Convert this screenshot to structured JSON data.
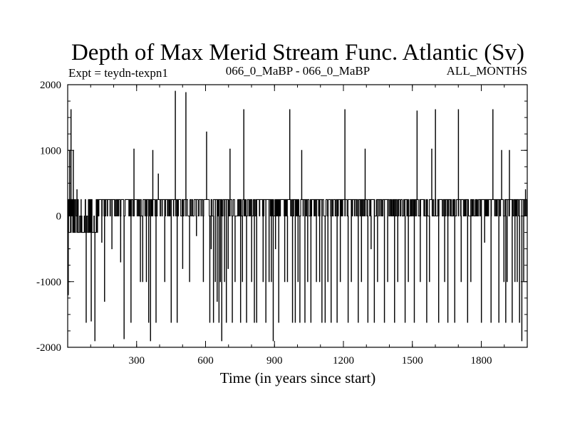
{
  "chart_data": {
    "type": "line",
    "title": "Depth of Max Merid Stream Func. Atlantic (Sv)",
    "subtitle_left": "Expt = teydn-texpn1",
    "subtitle_center": "066_0_MaBP - 066_0_MaBP",
    "subtitle_right": "ALL_MONTHS",
    "xlabel": "Time (in years since start)",
    "ylabel": "",
    "xlim": [
      0,
      2000
    ],
    "ylim": [
      -2000,
      2000
    ],
    "xticks": [
      300,
      600,
      900,
      1200,
      1500,
      1800
    ],
    "yticks": [
      -2000,
      -1000,
      0,
      1000,
      2000
    ],
    "x_minor_step": 100,
    "y_minor_step": 250,
    "grid": false,
    "baseline_values": [
      -250,
      0,
      250
    ],
    "series": [
      {
        "color": "#000000",
        "spikes": [
          [
            2,
            -1200
          ],
          [
            8,
            1000
          ],
          [
            14,
            1620
          ],
          [
            24,
            1000
          ],
          [
            32,
            -250
          ],
          [
            40,
            400
          ],
          [
            48,
            -250
          ],
          [
            58,
            250
          ],
          [
            72,
            -250
          ],
          [
            80,
            -1620
          ],
          [
            90,
            250
          ],
          [
            102,
            -1600
          ],
          [
            118,
            -1900
          ],
          [
            128,
            250
          ],
          [
            148,
            -400
          ],
          [
            160,
            -1300
          ],
          [
            176,
            250
          ],
          [
            192,
            -500
          ],
          [
            206,
            250
          ],
          [
            230,
            -700
          ],
          [
            245,
            -1870
          ],
          [
            262,
            250
          ],
          [
            275,
            -1620
          ],
          [
            288,
            1020
          ],
          [
            302,
            250
          ],
          [
            316,
            -1000
          ],
          [
            326,
            -1000
          ],
          [
            334,
            250
          ],
          [
            342,
            -1000
          ],
          [
            352,
            -1620
          ],
          [
            360,
            -1900
          ],
          [
            370,
            1000
          ],
          [
            384,
            -1620
          ],
          [
            394,
            640
          ],
          [
            410,
            250
          ],
          [
            422,
            -1000
          ],
          [
            438,
            250
          ],
          [
            450,
            -1620
          ],
          [
            468,
            1900
          ],
          [
            476,
            -1620
          ],
          [
            490,
            250
          ],
          [
            500,
            -800
          ],
          [
            514,
            1880
          ],
          [
            530,
            -1000
          ],
          [
            544,
            250
          ],
          [
            560,
            -300
          ],
          [
            575,
            250
          ],
          [
            590,
            -1000
          ],
          [
            604,
            1280
          ],
          [
            618,
            -1620
          ],
          [
            624,
            -500
          ],
          [
            634,
            -1620
          ],
          [
            642,
            -1000
          ],
          [
            650,
            -1300
          ],
          [
            658,
            -1620
          ],
          [
            664,
            -1000
          ],
          [
            670,
            -1900
          ],
          [
            682,
            -1000
          ],
          [
            690,
            -1620
          ],
          [
            698,
            -800
          ],
          [
            706,
            1020
          ],
          [
            716,
            -1620
          ],
          [
            728,
            -1000
          ],
          [
            740,
            250
          ],
          [
            752,
            -1620
          ],
          [
            760,
            -1000
          ],
          [
            766,
            1620
          ],
          [
            778,
            -1620
          ],
          [
            792,
            250
          ],
          [
            800,
            -1000
          ],
          [
            812,
            -1620
          ],
          [
            822,
            -1620
          ],
          [
            832,
            250
          ],
          [
            850,
            -1000
          ],
          [
            862,
            -1620
          ],
          [
            876,
            -1000
          ],
          [
            886,
            -1000
          ],
          [
            894,
            -1900
          ],
          [
            904,
            -500
          ],
          [
            918,
            -1620
          ],
          [
            932,
            250
          ],
          [
            944,
            -1000
          ],
          [
            956,
            -1000
          ],
          [
            966,
            1620
          ],
          [
            978,
            -1620
          ],
          [
            990,
            -1620
          ],
          [
            1002,
            -1000
          ],
          [
            1010,
            -1620
          ],
          [
            1018,
            1000
          ],
          [
            1032,
            -1620
          ],
          [
            1044,
            -1000
          ],
          [
            1058,
            -1620
          ],
          [
            1072,
            250
          ],
          [
            1082,
            -1000
          ],
          [
            1096,
            -1000
          ],
          [
            1106,
            -1620
          ],
          [
            1120,
            -1620
          ],
          [
            1132,
            -1000
          ],
          [
            1146,
            -1620
          ],
          [
            1160,
            250
          ],
          [
            1172,
            -1620
          ],
          [
            1186,
            -1000
          ],
          [
            1196,
            250
          ],
          [
            1206,
            1620
          ],
          [
            1220,
            -1620
          ],
          [
            1234,
            -1000
          ],
          [
            1248,
            250
          ],
          [
            1264,
            -1620
          ],
          [
            1278,
            -1000
          ],
          [
            1294,
            1020
          ],
          [
            1306,
            -1620
          ],
          [
            1320,
            -500
          ],
          [
            1334,
            -1620
          ],
          [
            1348,
            -1000
          ],
          [
            1362,
            250
          ],
          [
            1378,
            -1620
          ],
          [
            1392,
            -1000
          ],
          [
            1406,
            250
          ],
          [
            1422,
            -1620
          ],
          [
            1436,
            -1000
          ],
          [
            1452,
            250
          ],
          [
            1468,
            -1620
          ],
          [
            1482,
            -1000
          ],
          [
            1496,
            250
          ],
          [
            1508,
            -1620
          ],
          [
            1520,
            1600
          ],
          [
            1534,
            -1000
          ],
          [
            1548,
            250
          ],
          [
            1562,
            -1620
          ],
          [
            1574,
            -1000
          ],
          [
            1584,
            1020
          ],
          [
            1600,
            1620
          ],
          [
            1614,
            -1620
          ],
          [
            1626,
            250
          ],
          [
            1640,
            -1000
          ],
          [
            1654,
            -1620
          ],
          [
            1668,
            250
          ],
          [
            1684,
            -1620
          ],
          [
            1700,
            1620
          ],
          [
            1712,
            -1000
          ],
          [
            1726,
            250
          ],
          [
            1740,
            -1620
          ],
          [
            1754,
            -1000
          ],
          [
            1768,
            250
          ],
          [
            1784,
            250
          ],
          [
            1800,
            -1620
          ],
          [
            1814,
            -400
          ],
          [
            1828,
            250
          ],
          [
            1842,
            -1620
          ],
          [
            1850,
            1620
          ],
          [
            1862,
            250
          ],
          [
            1876,
            -1620
          ],
          [
            1888,
            1000
          ],
          [
            1898,
            -1000
          ],
          [
            1906,
            -1620
          ],
          [
            1912,
            -1000
          ],
          [
            1922,
            1000
          ],
          [
            1934,
            -1620
          ],
          [
            1946,
            -1000
          ],
          [
            1956,
            -1000
          ],
          [
            1966,
            -1620
          ],
          [
            1976,
            -1900
          ],
          [
            1984,
            -1000
          ],
          [
            1992,
            400
          ]
        ]
      }
    ]
  }
}
